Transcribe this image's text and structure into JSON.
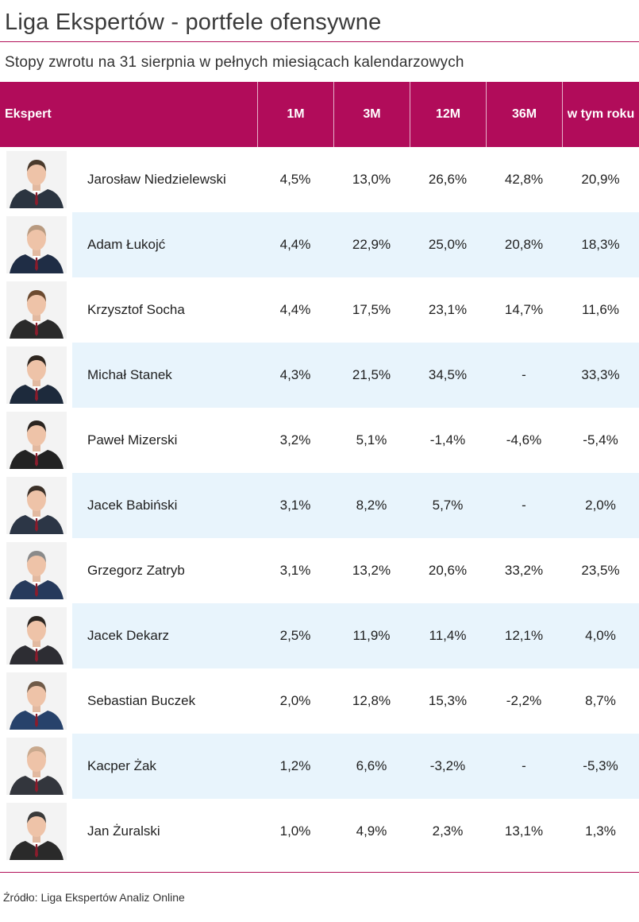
{
  "title": "Liga Ekspertów - portfele ofensywne",
  "subtitle": "Stopy zwrotu na 31 sierpnia w pełnych miesiącach kalendarzowych",
  "source": "Źródło: Liga Ekspertów Analiz Online",
  "colors": {
    "header": "#b10c5a",
    "rule": "#b2125a",
    "stripe": "#e8f4fc"
  },
  "chart_data": {
    "type": "table",
    "columns": [
      "Ekspert",
      "1M",
      "3M",
      "12M",
      "36M",
      "w tym roku"
    ],
    "rows": [
      {
        "name": "Jarosław Niedzielewski",
        "avatar": "person-photo",
        "m1": "4,5%",
        "m3": "13,0%",
        "m12": "26,6%",
        "m36": "42,8%",
        "ytd": "20,9%"
      },
      {
        "name": "Adam Łukojć",
        "avatar": "person-photo",
        "m1": "4,4%",
        "m3": "22,9%",
        "m12": "25,0%",
        "m36": "20,8%",
        "ytd": "18,3%"
      },
      {
        "name": "Krzysztof Socha",
        "avatar": "person-photo",
        "m1": "4,4%",
        "m3": "17,5%",
        "m12": "23,1%",
        "m36": "14,7%",
        "ytd": "11,6%"
      },
      {
        "name": "Michał Stanek",
        "avatar": "person-photo",
        "m1": "4,3%",
        "m3": "21,5%",
        "m12": "34,5%",
        "m36": "-",
        "ytd": "33,3%"
      },
      {
        "name": "Paweł Mizerski",
        "avatar": "person-photo",
        "m1": "3,2%",
        "m3": "5,1%",
        "m12": "-1,4%",
        "m36": "-4,6%",
        "ytd": "-5,4%"
      },
      {
        "name": "Jacek Babiński",
        "avatar": "person-photo",
        "m1": "3,1%",
        "m3": "8,2%",
        "m12": "5,7%",
        "m36": "-",
        "ytd": "2,0%"
      },
      {
        "name": "Grzegorz Zatryb",
        "avatar": "person-photo",
        "m1": "3,1%",
        "m3": "13,2%",
        "m12": "20,6%",
        "m36": "33,2%",
        "ytd": "23,5%"
      },
      {
        "name": "Jacek Dekarz",
        "avatar": "person-photo",
        "m1": "2,5%",
        "m3": "11,9%",
        "m12": "11,4%",
        "m36": "12,1%",
        "ytd": "4,0%"
      },
      {
        "name": "Sebastian Buczek",
        "avatar": "person-photo",
        "m1": "2,0%",
        "m3": "12,8%",
        "m12": "15,3%",
        "m36": "-2,2%",
        "ytd": "8,7%"
      },
      {
        "name": "Kacper Żak",
        "avatar": "person-photo",
        "m1": "1,2%",
        "m3": "6,6%",
        "m12": "-3,2%",
        "m36": "-",
        "ytd": "-5,3%"
      },
      {
        "name": "Jan Żuralski",
        "avatar": "person-photo",
        "m1": "1,0%",
        "m3": "4,9%",
        "m12": "2,3%",
        "m36": "13,1%",
        "ytd": "1,3%"
      }
    ]
  }
}
